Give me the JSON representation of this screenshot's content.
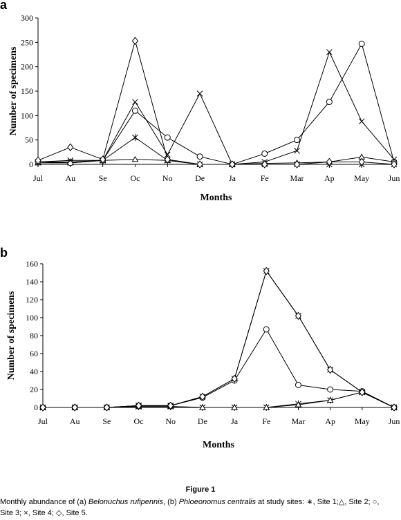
{
  "panels": [
    {
      "letter": "a"
    },
    {
      "letter": "b"
    }
  ],
  "caption": {
    "title": "Figure 1",
    "text_1": "Monthly abundance of (a) ",
    "species_a": "Belonuchus rufipennis",
    "text_2": ", (b) ",
    "species_b": "Phloeonomus centralis",
    "text_3": " at study sites: ∗, Site 1;△, Site 2; ○, Site 3; ×, Site 4; ◇, Site 5."
  },
  "chart_data": [
    {
      "type": "line",
      "panel": "a",
      "categories": [
        "Jul",
        "Au",
        "Se",
        "Oc",
        "No",
        "De",
        "Ja",
        "Fe",
        "Mar",
        "Ap",
        "May",
        "Jun"
      ],
      "xlabel": "Months",
      "ylabel": "Number of specimens",
      "ylim": [
        0,
        300
      ],
      "yticks": [
        0,
        50,
        100,
        150,
        200,
        250,
        300
      ],
      "grid": false,
      "series": [
        {
          "marker": "asterisk",
          "values": [
            5,
            5,
            8,
            55,
            8,
            0,
            0,
            0,
            0,
            0,
            0,
            0
          ]
        },
        {
          "marker": "triangle",
          "values": [
            3,
            3,
            8,
            10,
            8,
            0,
            0,
            2,
            3,
            5,
            15,
            5
          ]
        },
        {
          "marker": "circle",
          "values": [
            5,
            3,
            8,
            110,
            55,
            16,
            0,
            22,
            50,
            128,
            247,
            5
          ]
        },
        {
          "marker": "x",
          "values": [
            5,
            8,
            8,
            128,
            20,
            145,
            0,
            5,
            28,
            230,
            88,
            10
          ]
        },
        {
          "marker": "diamond",
          "values": [
            8,
            35,
            10,
            253,
            10,
            0,
            0,
            0,
            0,
            5,
            5,
            0
          ]
        }
      ]
    },
    {
      "type": "line",
      "panel": "b",
      "categories": [
        "Jul",
        "Au",
        "Se",
        "Oc",
        "No",
        "De",
        "Ja",
        "Fe",
        "Mar",
        "Ap",
        "May",
        "Jun"
      ],
      "xlabel": "Months",
      "ylabel": "Number of specimens",
      "ylim": [
        0,
        160
      ],
      "yticks": [
        0,
        20,
        40,
        60,
        80,
        100,
        120,
        140,
        160
      ],
      "grid": false,
      "series": [
        {
          "marker": "asterisk",
          "values": [
            0,
            0,
            0,
            1,
            1,
            0,
            0,
            0,
            4,
            8,
            17,
            0
          ]
        },
        {
          "marker": "triangle",
          "values": [
            0,
            0,
            0,
            1,
            1,
            0,
            0,
            0,
            3,
            8,
            17,
            0
          ]
        },
        {
          "marker": "circle",
          "values": [
            0,
            0,
            0,
            2,
            2,
            11,
            30,
            87,
            25,
            20,
            18,
            0
          ]
        },
        {
          "marker": "x",
          "values": [
            0,
            0,
            0,
            2,
            2,
            12,
            32,
            152,
            102,
            42,
            17,
            0
          ]
        },
        {
          "marker": "diamond",
          "values": [
            0,
            0,
            0,
            2,
            2,
            12,
            32,
            152,
            102,
            42,
            17,
            0
          ]
        }
      ]
    }
  ]
}
